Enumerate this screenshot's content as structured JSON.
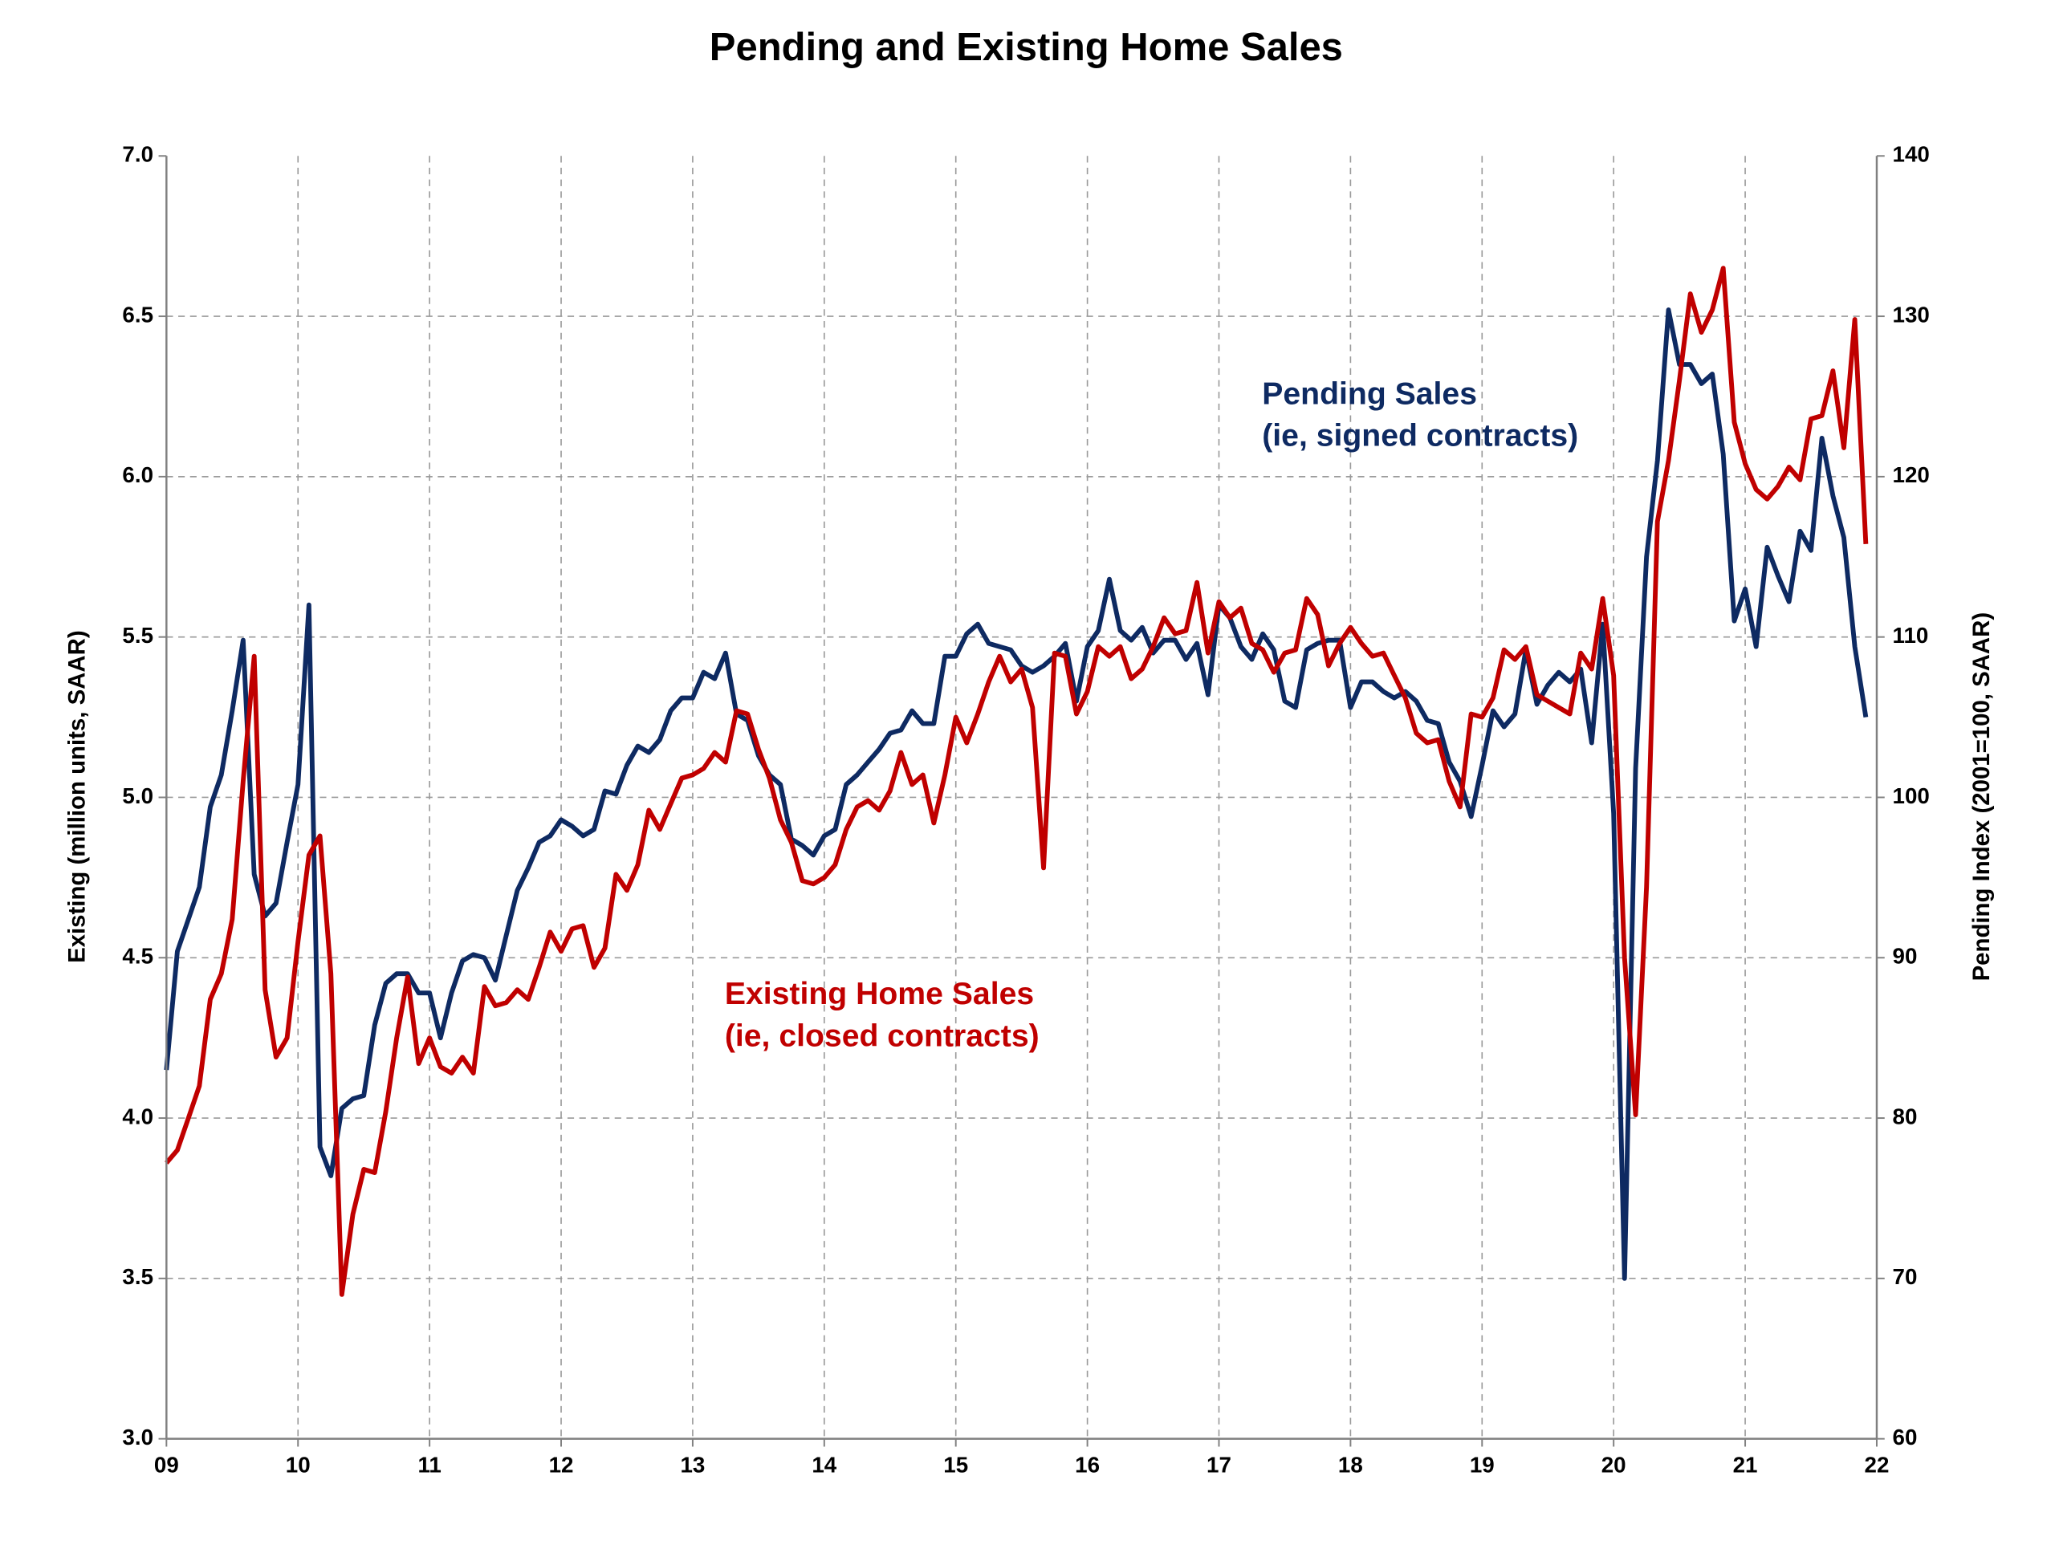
{
  "chart_data": {
    "type": "line",
    "title": "Pending and Existing Home Sales",
    "ylabel": "Existing (million units, SAAR)",
    "y2label": "Pending Index (2001=100, SAAR)",
    "xlim": [
      2009,
      2022
    ],
    "xticks": [
      {
        "value": 2009,
        "label": "09"
      },
      {
        "value": 2010,
        "label": "10"
      },
      {
        "value": 2011,
        "label": "11"
      },
      {
        "value": 2012,
        "label": "12"
      },
      {
        "value": 2013,
        "label": "13"
      },
      {
        "value": 2014,
        "label": "14"
      },
      {
        "value": 2015,
        "label": "15"
      },
      {
        "value": 2016,
        "label": "16"
      },
      {
        "value": 2017,
        "label": "17"
      },
      {
        "value": 2018,
        "label": "18"
      },
      {
        "value": 2019,
        "label": "19"
      },
      {
        "value": 2020,
        "label": "20"
      },
      {
        "value": 2021,
        "label": "21"
      },
      {
        "value": 2022,
        "label": "22"
      }
    ],
    "ylim": [
      3,
      7
    ],
    "yticks": [
      {
        "value": 3,
        "label": "3.0"
      },
      3.5,
      {
        "value": 4,
        "label": "4.0"
      },
      4.5,
      {
        "value": 5,
        "label": "5.0"
      },
      5.5,
      {
        "value": 6,
        "label": "6.0"
      },
      6.5,
      {
        "value": 7,
        "label": "7.0"
      }
    ],
    "y2lim": [
      60,
      140
    ],
    "y2ticks": [
      60,
      70,
      80,
      90,
      100,
      110,
      120,
      130,
      140
    ],
    "grid": true,
    "x": [
      2009,
      2009.083,
      2009.167,
      2009.25,
      2009.333,
      2009.417,
      2009.5,
      2009.583,
      2009.667,
      2009.75,
      2009.833,
      2009.917,
      2010,
      2010.083,
      2010.167,
      2010.25,
      2010.333,
      2010.417,
      2010.5,
      2010.583,
      2010.667,
      2010.75,
      2010.833,
      2010.917,
      2011,
      2011.083,
      2011.167,
      2011.25,
      2011.333,
      2011.417,
      2011.5,
      2011.583,
      2011.667,
      2011.75,
      2011.833,
      2011.917,
      2012,
      2012.083,
      2012.167,
      2012.25,
      2012.333,
      2012.417,
      2012.5,
      2012.583,
      2012.667,
      2012.75,
      2012.833,
      2012.917,
      2013,
      2013.083,
      2013.167,
      2013.25,
      2013.333,
      2013.417,
      2013.5,
      2013.583,
      2013.667,
      2013.75,
      2013.833,
      2013.917,
      2014,
      2014.083,
      2014.167,
      2014.25,
      2014.333,
      2014.417,
      2014.5,
      2014.583,
      2014.667,
      2014.75,
      2014.833,
      2014.917,
      2015,
      2015.083,
      2015.167,
      2015.25,
      2015.333,
      2015.417,
      2015.5,
      2015.583,
      2015.667,
      2015.75,
      2015.833,
      2015.917,
      2016,
      2016.083,
      2016.167,
      2016.25,
      2016.333,
      2016.417,
      2016.5,
      2016.583,
      2016.667,
      2016.75,
      2016.833,
      2016.917,
      2017,
      2017.083,
      2017.167,
      2017.25,
      2017.333,
      2017.417,
      2017.5,
      2017.583,
      2017.667,
      2017.75,
      2017.833,
      2017.917,
      2018,
      2018.083,
      2018.167,
      2018.25,
      2018.333,
      2018.417,
      2018.5,
      2018.583,
      2018.667,
      2018.75,
      2018.833,
      2018.917,
      2019,
      2019.083,
      2019.167,
      2019.25,
      2019.333,
      2019.417,
      2019.5,
      2019.583,
      2019.667,
      2019.75,
      2019.833,
      2019.917,
      2020,
      2020.083,
      2020.167,
      2020.25,
      2020.333,
      2020.417,
      2020.5,
      2020.583,
      2020.667,
      2020.75,
      2020.833,
      2020.917,
      2021,
      2021.083,
      2021.167,
      2021.25,
      2021.333,
      2021.417,
      2021.5,
      2021.583,
      2021.667,
      2021.75,
      2021.833,
      2021.917
    ],
    "series": [
      {
        "name": "Existing Home Sales",
        "color": "#c00000",
        "values": [
          3.86,
          3.9,
          4.0,
          4.1,
          4.37,
          4.45,
          4.62,
          5.05,
          5.44,
          4.4,
          4.19,
          4.25,
          4.55,
          4.82,
          4.88,
          4.45,
          3.45,
          3.7,
          3.84,
          3.83,
          4.02,
          4.25,
          4.44,
          4.17,
          4.25,
          4.16,
          4.14,
          4.19,
          4.14,
          4.41,
          4.35,
          4.36,
          4.4,
          4.37,
          4.47,
          4.58,
          4.52,
          4.59,
          4.6,
          4.47,
          4.53,
          4.76,
          4.71,
          4.79,
          4.96,
          4.9,
          4.98,
          5.06,
          5.07,
          5.09,
          5.14,
          5.11,
          5.27,
          5.26,
          5.15,
          5.06,
          4.93,
          4.86,
          4.74,
          4.73,
          4.75,
          4.79,
          4.9,
          4.97,
          4.99,
          4.96,
          5.02,
          5.14,
          5.04,
          5.07,
          4.92,
          5.07,
          5.25,
          5.17,
          5.26,
          5.36,
          5.44,
          5.36,
          5.4,
          5.28,
          4.78,
          5.45,
          5.44,
          5.26,
          5.33,
          5.47,
          5.44,
          5.47,
          5.37,
          5.4,
          5.47,
          5.56,
          5.51,
          5.52,
          5.67,
          5.45,
          5.61,
          5.56,
          5.59,
          5.48,
          5.46,
          5.39,
          5.45,
          5.46,
          5.62,
          5.57,
          5.41,
          5.48,
          5.53,
          5.48,
          5.44,
          5.45,
          5.38,
          5.31,
          5.2,
          5.17,
          5.18,
          5.05,
          4.97,
          5.26,
          5.25,
          5.31,
          5.46,
          5.43,
          5.47,
          5.32,
          5.3,
          5.28,
          5.26,
          5.45,
          5.4,
          5.62,
          5.38,
          4.5,
          4.01,
          4.72,
          5.86,
          6.05,
          6.3,
          6.57,
          6.45,
          6.52,
          6.65,
          6.17,
          6.04,
          5.96,
          5.93,
          5.97,
          6.03,
          5.99,
          6.18,
          6.19,
          6.33,
          6.09,
          6.49,
          5.79
        ]
      },
      {
        "name": "Pending Sales",
        "color": "#0e2a62",
        "axis": "y2",
        "values": [
          83,
          90.4,
          92.4,
          94.4,
          99.4,
          101.4,
          105.4,
          109.8,
          95.2,
          92.6,
          93.4,
          97.2,
          100.8,
          112,
          78.2,
          76.4,
          80.6,
          81.2,
          81.4,
          85.8,
          88.4,
          89,
          89,
          87.8,
          87.8,
          85,
          87.8,
          89.8,
          90.2,
          90,
          88.6,
          91.4,
          94.2,
          95.6,
          97.2,
          97.6,
          98.6,
          98.2,
          97.6,
          98,
          100.4,
          100.2,
          102,
          103.2,
          102.8,
          103.6,
          105.4,
          106.2,
          106.2,
          107.8,
          107.4,
          109,
          105.2,
          104.8,
          102.6,
          101.4,
          100.8,
          97.4,
          97,
          96.4,
          97.6,
          98,
          100.8,
          101.4,
          102.2,
          103,
          104,
          104.2,
          105.4,
          104.6,
          104.6,
          108.8,
          108.8,
          110.2,
          110.8,
          109.6,
          109.4,
          109.2,
          108.2,
          107.8,
          108.2,
          108.8,
          109.6,
          106,
          109.4,
          110.4,
          113.6,
          110.4,
          109.8,
          110.6,
          109,
          109.8,
          109.8,
          108.6,
          109.6,
          106.4,
          112,
          111.2,
          109.4,
          108.6,
          110.2,
          109.2,
          106,
          105.6,
          109.2,
          109.6,
          109.8,
          109.8,
          105.6,
          107.2,
          107.2,
          106.6,
          106.2,
          106.6,
          106,
          104.8,
          104.6,
          102.2,
          101,
          98.8,
          102,
          105.4,
          104.4,
          105.2,
          109.2,
          105.8,
          107,
          107.8,
          107.2,
          108,
          103.4,
          110.8,
          99,
          70,
          101.8,
          115,
          121,
          130.4,
          127,
          127,
          125.8,
          126.4,
          121.4,
          111,
          113,
          109.4,
          115.6,
          113.8,
          112.2,
          116.6,
          115.4,
          122.4,
          118.8,
          116.2,
          109.4,
          105
        ]
      }
    ],
    "annotations": [
      {
        "lines": [
          "Pending Sales",
          "(ie, signed contracts)"
        ]
      },
      {
        "lines": [
          "Existing Home Sales",
          "(ie, closed contracts)"
        ]
      }
    ]
  }
}
